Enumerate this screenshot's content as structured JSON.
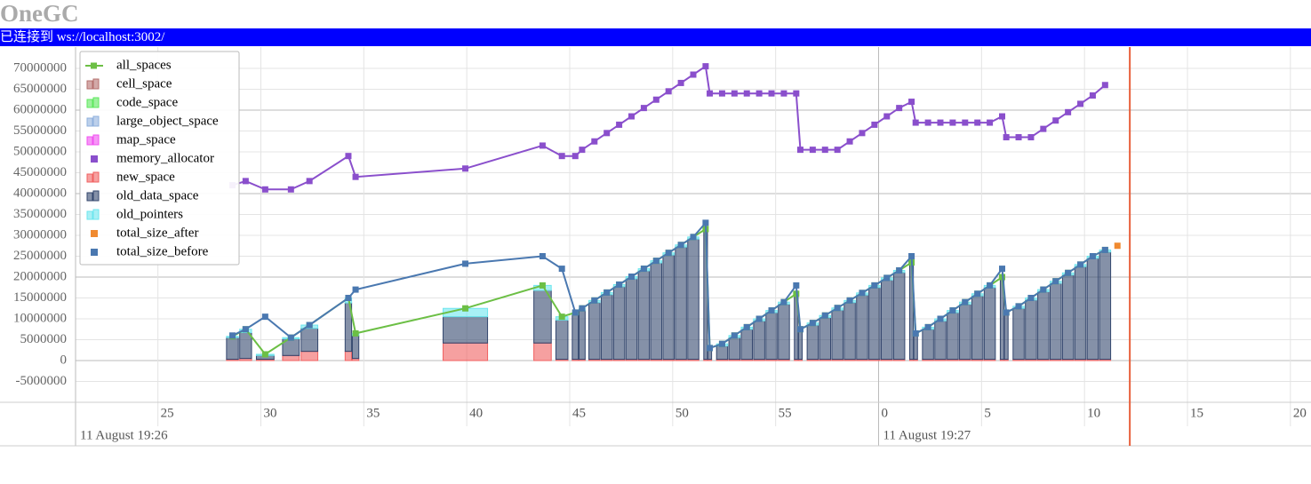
{
  "header": {
    "title": "OneGC",
    "status": "已连接到 ws://localhost:3002/"
  },
  "chart_data": {
    "type": "combo",
    "xlim": [
      21,
      81
    ],
    "ylim": [
      -10000000,
      75100000
    ],
    "xticks": [
      25,
      30,
      35,
      40,
      45,
      50,
      55,
      {
        "value": 60,
        "label": "0"
      },
      {
        "value": 65,
        "label": "5"
      },
      {
        "value": 70,
        "label": "10"
      },
      {
        "value": 75,
        "label": "15"
      },
      {
        "value": 80,
        "label": "20"
      }
    ],
    "date_ticks": [
      {
        "value": 21,
        "label": "11 August 19:26"
      },
      {
        "value": 60,
        "label": "11 August 19:27"
      }
    ],
    "yticks": [
      -5000000,
      0,
      5000000,
      10000000,
      15000000,
      20000000,
      25000000,
      30000000,
      35000000,
      40000000,
      45000000,
      50000000,
      55000000,
      60000000,
      65000000,
      70000000
    ],
    "grid": true,
    "legend": "top-left",
    "current_time": 72.2,
    "x": [
      28.62,
      29.26,
      30.21,
      31.46,
      32.36,
      34.25,
      34.6,
      39.93,
      43.68,
      44.62,
      45.27,
      45.6,
      46.2,
      46.8,
      47.4,
      48.0,
      48.6,
      49.2,
      49.8,
      50.4,
      51.0,
      51.6,
      51.8,
      52.4,
      53.0,
      53.6,
      54.2,
      54.8,
      55.4,
      56.0,
      56.2,
      56.8,
      57.4,
      58.0,
      58.6,
      59.2,
      59.8,
      60.4,
      61.0,
      61.6,
      61.8,
      62.4,
      63.0,
      63.6,
      64.2,
      64.8,
      65.4,
      66.0,
      66.2,
      66.8,
      67.4,
      68.0,
      68.6,
      69.2,
      69.8,
      70.4,
      71.0
    ],
    "series": [
      {
        "name": "all_spaces",
        "type": "line",
        "color": "#6cbf45",
        "values": [
          5800000,
          7500000,
          1500000,
          5500000,
          8500000,
          15000000,
          6500000,
          12500000,
          18000000,
          10500000,
          11500000,
          12500000,
          14400000,
          16300000,
          18200000,
          20100000,
          22000000,
          23900000,
          25800000,
          27700000,
          29600000,
          31500000,
          3000000,
          4000000,
          6000000,
          8000000,
          10000000,
          12000000,
          14000000,
          16000000,
          7500000,
          9000000,
          10800000,
          12600000,
          14400000,
          16200000,
          18000000,
          19800000,
          21600000,
          23500000,
          6500000,
          8000000,
          10000000,
          12000000,
          14000000,
          16000000,
          18000000,
          20000000,
          11500000,
          13000000,
          15000000,
          17000000,
          19000000,
          21000000,
          23000000,
          25000000,
          26500000
        ]
      },
      {
        "name": "cell_space",
        "type": "bar",
        "color": "#b5706e"
      },
      {
        "name": "code_space",
        "type": "bar",
        "color": "#5ee85e"
      },
      {
        "name": "large_object_space",
        "type": "bar",
        "color": "#8fb0dd"
      },
      {
        "name": "map_space",
        "type": "bar",
        "color": "#f050f0"
      },
      {
        "name": "memory_allocator",
        "type": "line",
        "color": "#8a4fcc",
        "values": [
          42000000,
          43000000,
          41000000,
          41000000,
          43000000,
          49000000,
          44000000,
          46000000,
          51500000,
          49000000,
          49000000,
          50500000,
          52500000,
          54500000,
          56500000,
          58500000,
          60500000,
          62500000,
          64500000,
          66500000,
          68500000,
          70500000,
          64000000,
          64000000,
          64000000,
          64000000,
          64000000,
          64000000,
          64000000,
          64000000,
          50500000,
          50500000,
          50500000,
          50500000,
          52500000,
          54500000,
          56500000,
          58500000,
          60500000,
          62000000,
          57000000,
          57000000,
          57000000,
          57000000,
          57000000,
          57000000,
          57000000,
          58500000,
          53500000,
          53500000,
          53500000,
          55500000,
          57500000,
          59500000,
          61500000,
          63500000,
          66000000
        ]
      },
      {
        "name": "new_space",
        "type": "bar",
        "color": "#f06060",
        "values": [
          300000,
          500000,
          300000,
          1200000,
          2200000,
          2200000,
          500000,
          4200000,
          4200000,
          300000,
          300000,
          300000,
          300000,
          300000,
          300000,
          300000,
          300000,
          300000,
          300000,
          300000,
          300000,
          300000,
          300000,
          300000,
          300000,
          300000,
          300000,
          300000,
          300000,
          300000,
          300000,
          300000,
          300000,
          300000,
          300000,
          300000,
          300000,
          300000,
          300000,
          300000,
          300000,
          300000,
          300000,
          300000,
          300000,
          300000,
          300000,
          300000,
          300000,
          300000,
          300000,
          300000,
          300000,
          300000,
          300000,
          300000,
          300000
        ]
      },
      {
        "name": "old_data_space",
        "type": "bar",
        "color": "#34476e",
        "values": [
          5200000,
          6200000,
          900000,
          4000000,
          5500000,
          11600000,
          5500000,
          6300000,
          12600000,
          9400000,
          10700000,
          11700000,
          13600000,
          15500000,
          17400000,
          19300000,
          21200000,
          23100000,
          25000000,
          26900000,
          28800000,
          30700000,
          2200000,
          3200000,
          5200000,
          7200000,
          9200000,
          11200000,
          13200000,
          15200000,
          6700000,
          8200000,
          10000000,
          11800000,
          13600000,
          15400000,
          17200000,
          19000000,
          20800000,
          22700000,
          5700000,
          7200000,
          9200000,
          11200000,
          13200000,
          15200000,
          17200000,
          19200000,
          10700000,
          12200000,
          14200000,
          16200000,
          18200000,
          20200000,
          22200000,
          24200000,
          25700000
        ]
      },
      {
        "name": "old_pointers",
        "type": "bar",
        "color": "#6ee6ee",
        "values": [
          300000,
          800000,
          300000,
          300000,
          800000,
          1200000,
          500000,
          2000000,
          1200000,
          800000,
          500000,
          500000,
          500000,
          500000,
          500000,
          500000,
          500000,
          500000,
          500000,
          500000,
          500000,
          500000,
          500000,
          500000,
          500000,
          500000,
          500000,
          500000,
          500000,
          500000,
          500000,
          500000,
          500000,
          500000,
          500000,
          500000,
          500000,
          500000,
          500000,
          500000,
          500000,
          500000,
          500000,
          500000,
          500000,
          500000,
          500000,
          500000,
          500000,
          500000,
          500000,
          500000,
          500000,
          500000,
          500000,
          500000,
          500000
        ]
      },
      {
        "name": "total_size_after",
        "type": "scatter",
        "color": "#f08a30",
        "x": [
          71.6
        ],
        "values": [
          27500000
        ]
      },
      {
        "name": "total_size_before",
        "type": "line",
        "color": "#4a78b0",
        "values": [
          6000000,
          7500000,
          10500000,
          5500000,
          8500000,
          15000000,
          17000000,
          23200000,
          25000000,
          22000000,
          11500000,
          12500000,
          14400000,
          16300000,
          18200000,
          20100000,
          22000000,
          23900000,
          25800000,
          27700000,
          29600000,
          33000000,
          3000000,
          4000000,
          6000000,
          8000000,
          10000000,
          12000000,
          14000000,
          18000000,
          7500000,
          9000000,
          10800000,
          12600000,
          14400000,
          16200000,
          18000000,
          19800000,
          21600000,
          25000000,
          6500000,
          8000000,
          10000000,
          12000000,
          14000000,
          16000000,
          18000000,
          22000000,
          11500000,
          13000000,
          15000000,
          17000000,
          19000000,
          21000000,
          23000000,
          25000000,
          26500000
        ]
      }
    ]
  }
}
